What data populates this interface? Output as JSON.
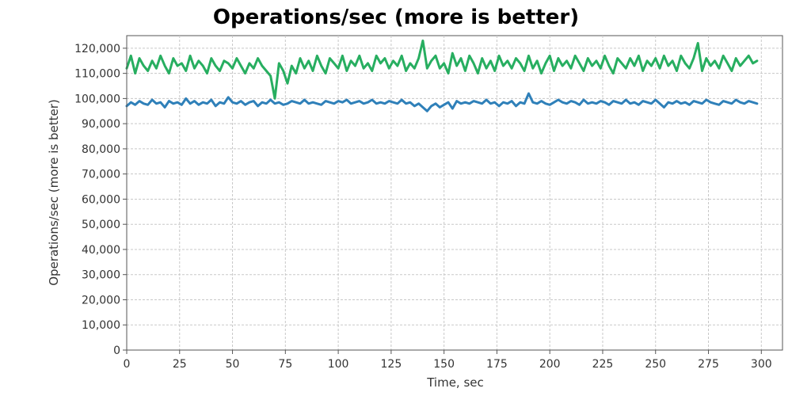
{
  "chart_data": {
    "type": "line",
    "title": "Operations/sec (more is better)",
    "xlabel": "Time, sec",
    "ylabel": "Operations/sec (more is better)",
    "xlim": [
      0,
      310
    ],
    "ylim": [
      0,
      125000
    ],
    "x_ticks": [
      0,
      25,
      50,
      75,
      100,
      125,
      150,
      175,
      200,
      225,
      250,
      275,
      300
    ],
    "x_tick_labels": [
      "0",
      "25",
      "50",
      "75",
      "100",
      "125",
      "150",
      "175",
      "200",
      "225",
      "250",
      "275",
      "300"
    ],
    "y_ticks": [
      0,
      10000,
      20000,
      30000,
      40000,
      50000,
      60000,
      70000,
      80000,
      90000,
      100000,
      110000,
      120000
    ],
    "y_tick_labels": [
      "0",
      "10,000",
      "20,000",
      "30,000",
      "40,000",
      "50,000",
      "60,000",
      "70,000",
      "80,000",
      "90,000",
      "100,000",
      "110,000",
      "120,000"
    ],
    "grid": true,
    "legend": "none",
    "colors": {
      "series_green": "#27ae60",
      "series_blue": "#2f80b9",
      "grid": "#c8c8c8",
      "frame": "#555555"
    },
    "series": [
      {
        "color": "#27ae60",
        "x": [
          0,
          2,
          4,
          6,
          8,
          10,
          12,
          14,
          16,
          18,
          20,
          22,
          24,
          26,
          28,
          30,
          32,
          34,
          36,
          38,
          40,
          42,
          44,
          46,
          48,
          50,
          52,
          54,
          56,
          58,
          60,
          62,
          64,
          66,
          68,
          70,
          72,
          74,
          76,
          78,
          80,
          82,
          84,
          86,
          88,
          90,
          92,
          94,
          96,
          98,
          100,
          102,
          104,
          106,
          108,
          110,
          112,
          114,
          116,
          118,
          120,
          122,
          124,
          126,
          128,
          130,
          132,
          134,
          136,
          138,
          140,
          142,
          144,
          146,
          148,
          150,
          152,
          154,
          156,
          158,
          160,
          162,
          164,
          166,
          168,
          170,
          172,
          174,
          176,
          178,
          180,
          182,
          184,
          186,
          188,
          190,
          192,
          194,
          196,
          198,
          200,
          202,
          204,
          206,
          208,
          210,
          212,
          214,
          216,
          218,
          220,
          222,
          224,
          226,
          228,
          230,
          232,
          234,
          236,
          238,
          240,
          242,
          244,
          246,
          248,
          250,
          252,
          254,
          256,
          258,
          260,
          262,
          264,
          266,
          268,
          270,
          272,
          274,
          276,
          278,
          280,
          282,
          284,
          286,
          288,
          290,
          292,
          294,
          296,
          298
        ],
        "y": [
          112000,
          117000,
          110000,
          116000,
          113000,
          111000,
          115000,
          112000,
          117000,
          113000,
          110000,
          116000,
          113000,
          114000,
          111000,
          117000,
          112000,
          115000,
          113000,
          110000,
          116000,
          113000,
          111000,
          115000,
          114000,
          112000,
          116000,
          113000,
          110000,
          114000,
          112000,
          116000,
          113000,
          111000,
          109000,
          100000,
          114000,
          111000,
          106000,
          113000,
          110000,
          116000,
          112000,
          115000,
          111000,
          117000,
          113000,
          110000,
          116000,
          114000,
          112000,
          117000,
          111000,
          115000,
          113000,
          117000,
          112000,
          114000,
          111000,
          117000,
          114000,
          116000,
          112000,
          115000,
          113000,
          117000,
          111000,
          114000,
          112000,
          116000,
          123000,
          112000,
          115000,
          117000,
          112000,
          114000,
          110000,
          118000,
          113000,
          116000,
          111000,
          117000,
          114000,
          110000,
          116000,
          112000,
          115000,
          111000,
          117000,
          113000,
          115000,
          112000,
          116000,
          114000,
          111000,
          117000,
          112000,
          115000,
          110000,
          114000,
          117000,
          111000,
          116000,
          113000,
          115000,
          112000,
          117000,
          114000,
          111000,
          116000,
          113000,
          115000,
          112000,
          117000,
          113000,
          110000,
          116000,
          114000,
          112000,
          116000,
          113000,
          117000,
          111000,
          115000,
          113000,
          116000,
          112000,
          117000,
          113000,
          115000,
          111000,
          117000,
          114000,
          112000,
          116000,
          122000,
          111000,
          116000,
          113000,
          115000,
          112000,
          117000,
          114000,
          111000,
          116000,
          113000,
          115000,
          117000,
          114000,
          115000
        ]
      },
      {
        "color": "#2f80b9",
        "x": [
          0,
          2,
          4,
          6,
          8,
          10,
          12,
          14,
          16,
          18,
          20,
          22,
          24,
          26,
          28,
          30,
          32,
          34,
          36,
          38,
          40,
          42,
          44,
          46,
          48,
          50,
          52,
          54,
          56,
          58,
          60,
          62,
          64,
          66,
          68,
          70,
          72,
          74,
          76,
          78,
          80,
          82,
          84,
          86,
          88,
          90,
          92,
          94,
          96,
          98,
          100,
          102,
          104,
          106,
          108,
          110,
          112,
          114,
          116,
          118,
          120,
          122,
          124,
          126,
          128,
          130,
          132,
          134,
          136,
          138,
          140,
          142,
          144,
          146,
          148,
          150,
          152,
          154,
          156,
          158,
          160,
          162,
          164,
          166,
          168,
          170,
          172,
          174,
          176,
          178,
          180,
          182,
          184,
          186,
          188,
          190,
          192,
          194,
          196,
          198,
          200,
          202,
          204,
          206,
          208,
          210,
          212,
          214,
          216,
          218,
          220,
          222,
          224,
          226,
          228,
          230,
          232,
          234,
          236,
          238,
          240,
          242,
          244,
          246,
          248,
          250,
          252,
          254,
          256,
          258,
          260,
          262,
          264,
          266,
          268,
          270,
          272,
          274,
          276,
          278,
          280,
          282,
          284,
          286,
          288,
          290,
          292,
          294,
          296,
          298
        ],
        "y": [
          97000,
          98500,
          97500,
          99000,
          98000,
          97500,
          99500,
          98000,
          98500,
          96500,
          99000,
          98000,
          98500,
          97500,
          100000,
          98000,
          99000,
          97500,
          98500,
          98000,
          99500,
          97000,
          98500,
          98000,
          100500,
          98500,
          98000,
          99000,
          97500,
          98500,
          99000,
          97000,
          98500,
          98000,
          99500,
          98000,
          98500,
          97500,
          98000,
          99000,
          98500,
          98000,
          99500,
          98000,
          98500,
          98000,
          97500,
          99000,
          98500,
          98000,
          99000,
          98500,
          99500,
          98000,
          98500,
          99000,
          98000,
          98500,
          99500,
          98000,
          98500,
          98000,
          99000,
          98500,
          98000,
          99500,
          98000,
          98500,
          97000,
          98000,
          96500,
          95000,
          97000,
          98000,
          96500,
          97500,
          98500,
          96000,
          99000,
          98000,
          98500,
          98000,
          99000,
          98500,
          98000,
          99500,
          98000,
          98500,
          97000,
          98500,
          98000,
          99000,
          97000,
          98500,
          98000,
          102000,
          98500,
          98000,
          99000,
          98000,
          97500,
          98500,
          99500,
          98500,
          98000,
          99000,
          98500,
          97500,
          99500,
          98000,
          98500,
          98000,
          99000,
          98500,
          97500,
          99000,
          98500,
          98000,
          99500,
          98000,
          98500,
          97500,
          99000,
          98500,
          98000,
          99500,
          98000,
          96500,
          98500,
          98000,
          99000,
          98000,
          98500,
          97500,
          99000,
          98500,
          98000,
          99500,
          98500,
          98000,
          97500,
          99000,
          98500,
          98000,
          99500,
          98500,
          98000,
          99000,
          98500,
          98000
        ]
      }
    ]
  }
}
